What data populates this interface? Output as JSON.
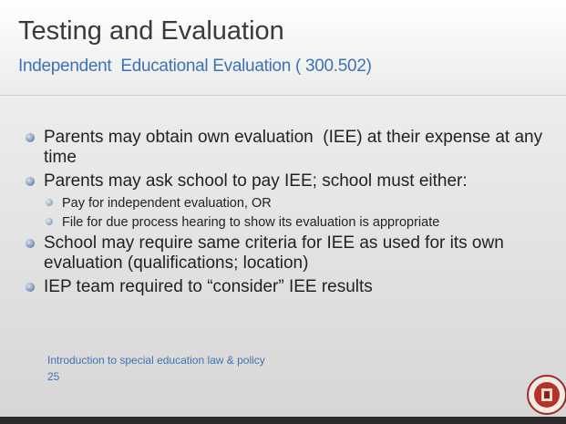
{
  "header": {
    "title": "Testing and Evaluation",
    "subtitle": "Independent  Educational Evaluation ( 300.502)"
  },
  "bullets": [
    {
      "text": "Parents may obtain own evaluation  (IEE) at their expense at any time",
      "sub": []
    },
    {
      "text": "Parents may ask school to pay IEE; school must either:",
      "sub": [
        "Pay for independent evaluation, OR",
        "File for due process hearing to show its evaluation is appropriate"
      ]
    },
    {
      "text": "School may require same criteria for IEE as used for its own evaluation (qualifications; location)",
      "sub": []
    },
    {
      "text": "IEP team required to “consider” IEE results",
      "sub": []
    }
  ],
  "footer": {
    "text": "Introduction to special education law & policy",
    "page": "25"
  }
}
